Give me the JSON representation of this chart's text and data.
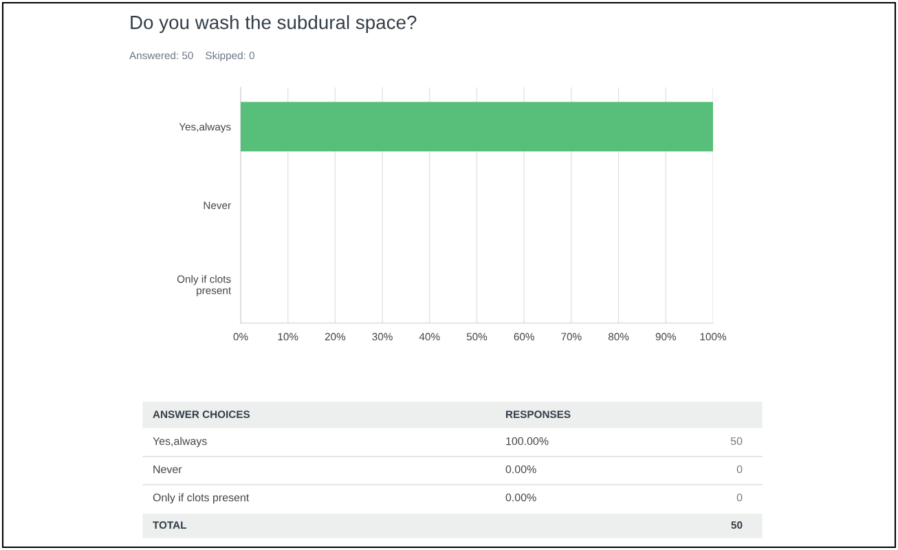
{
  "chart_data": {
    "type": "bar",
    "orientation": "horizontal",
    "title": "Do you wash the subdural space?",
    "subtitle": "Answered: 50    Skipped: 0",
    "categories": [
      "Yes,always",
      "Never",
      "Only if clots present"
    ],
    "values": [
      100,
      0,
      0
    ],
    "color": "#58bf7a",
    "xlim": [
      0,
      100
    ],
    "xticks": [
      {
        "value": 0,
        "label": "0%"
      },
      {
        "value": 10,
        "label": "10%"
      },
      {
        "value": 20,
        "label": "20%"
      },
      {
        "value": 30,
        "label": "30%"
      },
      {
        "value": 40,
        "label": "40%"
      },
      {
        "value": 50,
        "label": "50%"
      },
      {
        "value": 60,
        "label": "60%"
      },
      {
        "value": 70,
        "label": "70%"
      },
      {
        "value": 80,
        "label": "80%"
      },
      {
        "value": 90,
        "label": "90%"
      },
      {
        "value": 100,
        "label": "100%"
      }
    ],
    "grid": "x",
    "annotations": [
      "ANSWER CHOICES",
      "RESPONSES",
      "100.00%",
      "50",
      "0.00%",
      "0",
      "0.00%",
      "0",
      "TOTAL",
      "50"
    ]
  }
}
